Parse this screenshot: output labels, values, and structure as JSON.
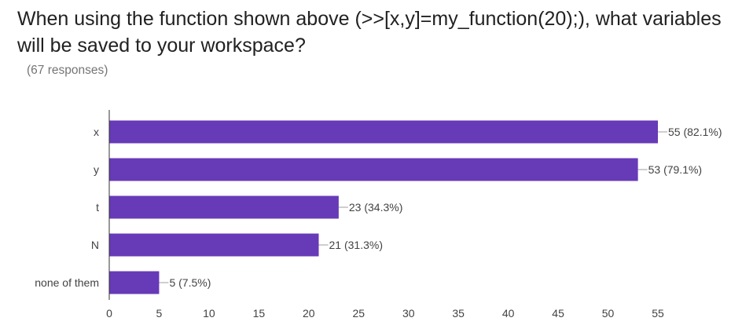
{
  "question": "When using the function shown above (>>[x,y]=my_function(20);), what variables will be saved to your workspace?",
  "response_count": "(67 responses)",
  "colors": {
    "bar": "#673ab7",
    "axis": "#333333",
    "text": "#212121",
    "muted": "#757575"
  },
  "chart_data": {
    "type": "bar",
    "orientation": "horizontal",
    "categories": [
      "x",
      "y",
      "t",
      "N",
      "none of them"
    ],
    "values": [
      55,
      53,
      23,
      21,
      5
    ],
    "data_labels": [
      "55 (82.1%)",
      "53 (79.1%)",
      "23 (34.3%)",
      "21 (31.3%)",
      "5 (7.5%)"
    ],
    "xlim": [
      0,
      55
    ],
    "xticks": [
      "0",
      "5",
      "10",
      "15",
      "20",
      "25",
      "30",
      "35",
      "40",
      "45",
      "50",
      "55"
    ],
    "grid": false,
    "legend": "none"
  }
}
